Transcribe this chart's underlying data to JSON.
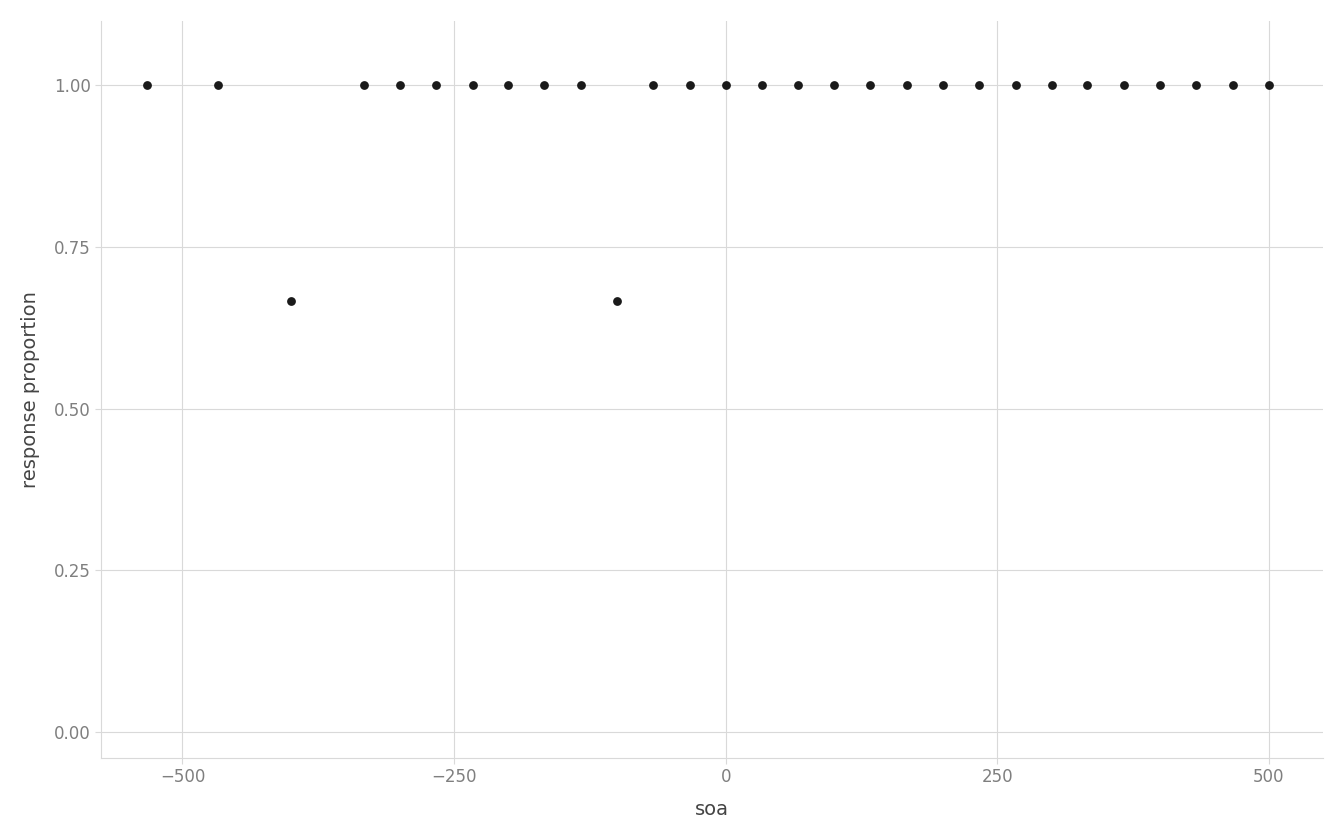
{
  "xlabel": "soa",
  "ylabel": "response proportion",
  "x_values": [
    -533,
    -467,
    -400,
    -333,
    -300,
    -267,
    -233,
    -200,
    -167,
    -133,
    -100,
    -67,
    -33,
    0,
    33,
    67,
    100,
    133,
    167,
    200,
    233,
    267,
    300,
    333,
    367,
    400,
    433,
    467,
    500
  ],
  "y_values": [
    1.0,
    1.0,
    0.6667,
    1.0,
    1.0,
    1.0,
    1.0,
    1.0,
    1.0,
    1.0,
    0.6667,
    1.0,
    1.0,
    1.0,
    1.0,
    1.0,
    1.0,
    1.0,
    1.0,
    1.0,
    1.0,
    1.0,
    1.0,
    1.0,
    1.0,
    1.0,
    1.0,
    1.0,
    1.0
  ],
  "xlim": [
    -575,
    550
  ],
  "ylim": [
    -0.04,
    1.1
  ],
  "xticks": [
    -500,
    -250,
    0,
    250,
    500
  ],
  "yticks": [
    0.0,
    0.25,
    0.5,
    0.75,
    1.0
  ],
  "dot_color": "#1a1a1a",
  "dot_size": 40,
  "background_color": "#ffffff",
  "panel_background": "#ffffff",
  "grid_color": "#d9d9d9",
  "grid_linewidth": 0.8,
  "title_fontsize": 20,
  "subtitle_fontsize": 14,
  "label_fontsize": 14,
  "tick_fontsize": 12,
  "tick_color": "#7f7f7f",
  "axis_text_color": "#444444",
  "title_color": "#1a1a1a"
}
